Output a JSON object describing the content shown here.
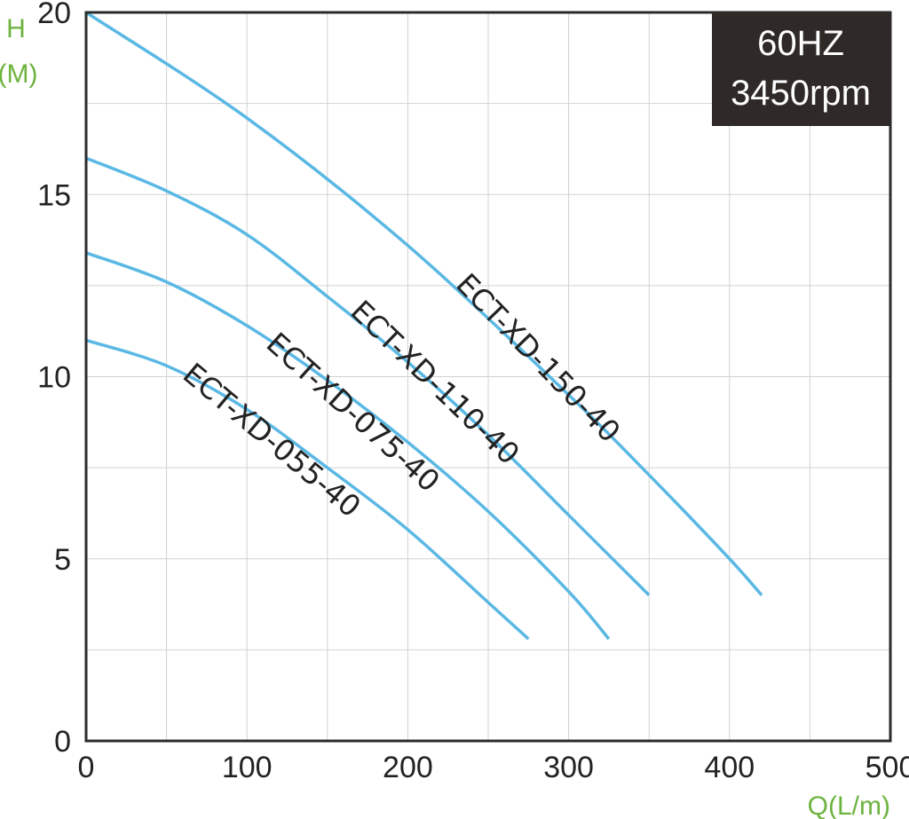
{
  "chart_data": {
    "type": "line",
    "ylabel_line1": "H",
    "ylabel_line2": "(M)",
    "xlabel": "Q(L/m)",
    "xlim": [
      0,
      500
    ],
    "ylim": [
      0,
      20
    ],
    "x_ticks": [
      0,
      100,
      200,
      300,
      400,
      500
    ],
    "y_ticks": [
      0,
      5,
      10,
      15,
      20
    ],
    "grid": true,
    "badge": {
      "line1": "60HZ",
      "line2": "3450rpm",
      "placement": "top-right"
    },
    "series": [
      {
        "name": "ECT-XD-150-40",
        "x": [
          0,
          100,
          200,
          300,
          350,
          400,
          420
        ],
        "y": [
          20,
          17.1,
          13.6,
          9.5,
          7.3,
          5.0,
          4.0
        ]
      },
      {
        "name": "ECT-XD-110-40",
        "x": [
          0,
          50,
          100,
          150,
          200,
          250,
          300,
          350
        ],
        "y": [
          16.0,
          15.1,
          13.9,
          12.2,
          10.4,
          8.4,
          6.2,
          4.0
        ]
      },
      {
        "name": "ECT-XD-075-40",
        "x": [
          0,
          50,
          100,
          150,
          200,
          250,
          300,
          325
        ],
        "y": [
          13.4,
          12.6,
          11.4,
          9.9,
          8.2,
          6.3,
          4.1,
          2.8
        ]
      },
      {
        "name": "ECT-XD-055-40",
        "x": [
          0,
          50,
          100,
          150,
          200,
          250,
          275
        ],
        "y": [
          11.0,
          10.3,
          9.1,
          7.5,
          5.8,
          3.8,
          2.8
        ]
      }
    ],
    "colors": {
      "curve": "#5ab8e4",
      "axis_title": "#6db33f",
      "badge": "#2f2a28"
    }
  }
}
